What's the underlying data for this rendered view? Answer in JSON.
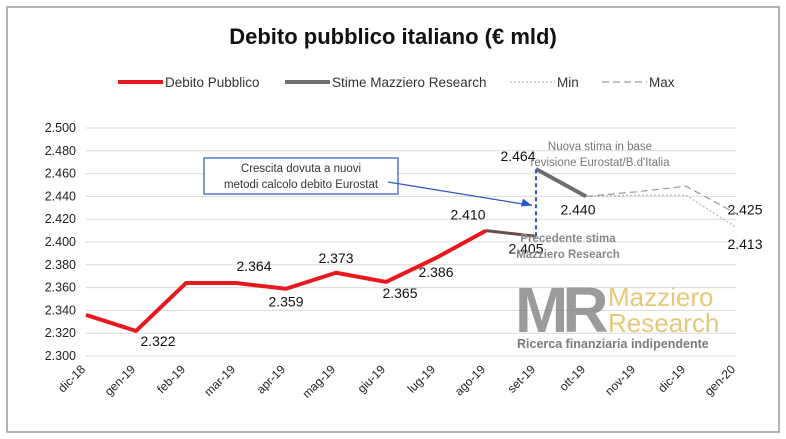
{
  "chart_data": {
    "type": "line",
    "title": "Debito pubblico italiano (€ mld)",
    "categories": [
      "dic-18",
      "gen-19",
      "feb-19",
      "mar-19",
      "apr-19",
      "mag-19",
      "giu-19",
      "lug-19",
      "ago-19",
      "set-19",
      "ott-19",
      "nov-19",
      "dic-19",
      "gen-20"
    ],
    "ylim": [
      2300,
      2500
    ],
    "yticks": [
      2300,
      2320,
      2340,
      2360,
      2380,
      2400,
      2420,
      2440,
      2460,
      2480,
      2500
    ],
    "ytick_labels": [
      "2.300",
      "2.320",
      "2.340",
      "2.360",
      "2.380",
      "2.400",
      "2.420",
      "2.440",
      "2.460",
      "2.480",
      "2.500"
    ],
    "grid": true,
    "legend_position": "top",
    "series": [
      {
        "key": "debito",
        "name": "Debito Pubblico",
        "color": "#e8181e",
        "style": "solid",
        "points": [
          [
            "dic-18",
            2336
          ],
          [
            "gen-19",
            2322
          ],
          [
            "feb-19",
            2364
          ],
          [
            "mar-19",
            2364
          ],
          [
            "apr-19",
            2359
          ],
          [
            "mag-19",
            2373
          ],
          [
            "giu-19",
            2365
          ],
          [
            "lug-19",
            2386
          ],
          [
            "ago-19",
            2410
          ]
        ]
      },
      {
        "key": "stime_old",
        "name": "Stime Mazziero Research",
        "color": "#6b4a4a",
        "style": "solid",
        "points": [
          [
            "ago-19",
            2410
          ],
          [
            "set-19",
            2405
          ]
        ]
      },
      {
        "key": "stime_new",
        "name": "",
        "color": "#6e6e6e",
        "style": "solid",
        "points": [
          [
            "set-19",
            2464
          ],
          [
            "ott-19",
            2440
          ]
        ]
      },
      {
        "key": "min",
        "name": "Min",
        "color": "#b5b5b5",
        "style": "dotted",
        "points": [
          [
            "ott-19",
            2440
          ],
          [
            "nov-19",
            2441
          ],
          [
            "dic-19",
            2441
          ],
          [
            "gen-20",
            2413
          ]
        ]
      },
      {
        "key": "max",
        "name": "Max",
        "color": "#9a9a9a",
        "style": "dashed",
        "points": [
          [
            "ott-19",
            2440
          ],
          [
            "nov-19",
            2444
          ],
          [
            "dic-19",
            2449
          ],
          [
            "gen-20",
            2425
          ]
        ]
      }
    ],
    "data_labels": [
      {
        "text": "2.322",
        "x": "gen-19",
        "y": 2322
      },
      {
        "text": "2.364",
        "x": "mar-19",
        "y": 2364
      },
      {
        "text": "2.359",
        "x": "apr-19",
        "y": 2359
      },
      {
        "text": "2.373",
        "x": "mag-19",
        "y": 2373
      },
      {
        "text": "2.365",
        "x": "giu-19",
        "y": 2365
      },
      {
        "text": "2.386",
        "x": "lug-19",
        "y": 2386
      },
      {
        "text": "2.410",
        "x": "ago-19",
        "y": 2410
      },
      {
        "text": "2.405",
        "x": "set-19",
        "y": 2405
      },
      {
        "text": "2.464",
        "x": "set-19",
        "y": 2464
      },
      {
        "text": "2.440",
        "x": "ott-19",
        "y": 2440
      },
      {
        "text": "2.425",
        "x": "gen-20",
        "y": 2425
      },
      {
        "text": "2.413",
        "x": "gen-20",
        "y": 2413
      }
    ],
    "annotations": [
      {
        "key": "crescita",
        "lines": [
          "Crescita dovuta a nuovi",
          "metodi calcolo debito Eurostat"
        ],
        "box_color": "#2b57c8"
      },
      {
        "key": "nuova",
        "lines": [
          "Nuova stima in base",
          "revisione Eurostat/B.d'Italia"
        ]
      },
      {
        "key": "precedente",
        "lines": [
          "Precedente stima",
          "Mazziero Research"
        ]
      }
    ],
    "revision_marker": {
      "x": "set-19",
      "from": 2405,
      "to": 2464,
      "color": "#2b57c8"
    }
  },
  "logo": {
    "mark": "MR",
    "line1": "Mazziero",
    "line2": "Research",
    "tagline": "Ricerca finanziaria indipendente",
    "gold": "#e6c87c",
    "grey": "#7a7a7a"
  }
}
